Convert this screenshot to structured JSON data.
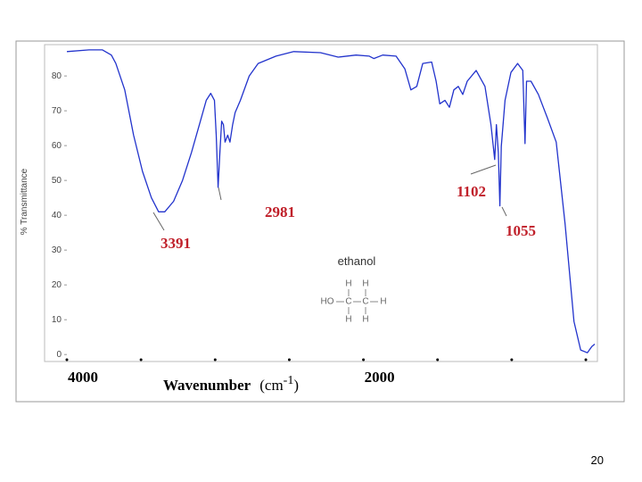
{
  "chart_data": {
    "type": "line",
    "ylabel": "% Transmittance",
    "xlabel": {
      "text": "Wavenumber",
      "unit": "(cm",
      "exponent": "-1",
      "close": ")"
    },
    "compound": "ethanol",
    "structure": [
      "HO",
      "C",
      "C",
      "H",
      "H",
      "H",
      "H",
      "H"
    ],
    "annotations": [
      "3391",
      "2981",
      "1102",
      "1055"
    ],
    "xlim": [
      4000,
      440
    ],
    "ylim": [
      -2,
      89
    ],
    "xticks": [
      4000,
      2000
    ],
    "xminor_ticks": [
      3500,
      3000,
      2500,
      1500,
      1000,
      500
    ],
    "yticks": [
      0,
      10,
      20,
      30,
      40,
      50,
      60,
      70,
      80
    ],
    "series": [
      {
        "name": "ethanol",
        "color": "#2233cc",
        "x": [
          4000,
          3850,
          3760,
          3700,
          3670,
          3610,
          3550,
          3490,
          3430,
          3381,
          3340,
          3280,
          3220,
          3160,
          3100,
          3060,
          3030,
          3005,
          2993,
          2980,
          2968,
          2956,
          2944,
          2933,
          2915,
          2900,
          2882,
          2865,
          2830,
          2770,
          2710,
          2590,
          2470,
          2290,
          2170,
          2050,
          1960,
          1930,
          1870,
          1780,
          1720,
          1680,
          1640,
          1600,
          1540,
          1510,
          1485,
          1450,
          1420,
          1390,
          1360,
          1330,
          1300,
          1240,
          1180,
          1140,
          1115,
          1103,
          1090,
          1080,
          1070,
          1045,
          1005,
          960,
          925,
          910,
          900,
          870,
          820,
          760,
          700,
          640,
          580,
          535,
          490,
          460,
          440
        ],
        "values": [
          87,
          87.5,
          87.5,
          86,
          83.6,
          76,
          63,
          52.6,
          45,
          41,
          41,
          44,
          50,
          58,
          67,
          73,
          75,
          73,
          63,
          48,
          58,
          67,
          66,
          61,
          63,
          61,
          66,
          69.5,
          73,
          80,
          83.6,
          85.7,
          87,
          86.7,
          85.4,
          86,
          85.7,
          85,
          86,
          85.7,
          82,
          76,
          77,
          83.6,
          84,
          78.5,
          72,
          73,
          71,
          76,
          77,
          74.7,
          78.5,
          81.6,
          77,
          66,
          56,
          66,
          58,
          42.7,
          59.8,
          73,
          81,
          83.6,
          81.6,
          60.6,
          78.5,
          78.5,
          74.7,
          68,
          61,
          37.6,
          9.5,
          1.3,
          0.5,
          2.3,
          3
        ]
      }
    ]
  },
  "page_number": "20"
}
